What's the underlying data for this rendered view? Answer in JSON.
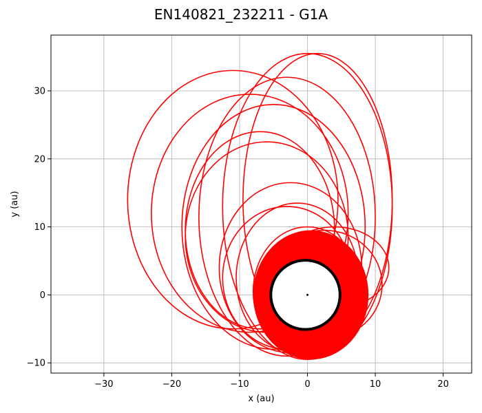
{
  "chart_data": {
    "type": "line",
    "title": "EN140821_232211 - G1A",
    "xlabel": "x (au)",
    "ylabel": "y (au)",
    "xlim": [
      -37.8,
      24.2
    ],
    "ylim": [
      -11.5,
      38.2
    ],
    "xticks": [
      -30,
      -20,
      -10,
      0,
      10,
      20
    ],
    "yticks": [
      -10,
      0,
      10,
      20,
      30
    ],
    "xtick_labels": [
      "−30",
      "−20",
      "−10",
      "0",
      "10",
      "20"
    ],
    "ytick_labels": [
      "−10",
      "0",
      "10",
      "20",
      "30"
    ],
    "grid": true,
    "series": [
      {
        "color": "#ff0000",
        "loops": [
          {
            "cx": -3.0,
            "cy": 2.5,
            "rx": 9.5,
            "ry": 10.5
          },
          {
            "cx": -2.5,
            "cy": 4.0,
            "rx": 10.5,
            "ry": 12.5
          },
          {
            "cx": 0.0,
            "cy": 0.5,
            "rx": 8.0,
            "ry": 9.5
          },
          {
            "cx": 1.0,
            "cy": 0.0,
            "rx": 7.5,
            "ry": 9.0
          },
          {
            "cx": -1.5,
            "cy": 2.5,
            "rx": 9.0,
            "ry": 11.0
          },
          {
            "cx": -6.0,
            "cy": 8.5,
            "rx": 12.0,
            "ry": 14.0
          },
          {
            "cx": -8.5,
            "cy": 12.0,
            "rx": 14.5,
            "ry": 17.5
          },
          {
            "cx": -11.0,
            "cy": 14.0,
            "rx": 15.5,
            "ry": 19.0
          },
          {
            "cx": -5.0,
            "cy": 10.0,
            "rx": 13.5,
            "ry": 18.0
          },
          {
            "cx": -3.0,
            "cy": 11.5,
            "rx": 13.0,
            "ry": 20.5
          },
          {
            "cx": 0.0,
            "cy": 13.0,
            "rx": 12.5,
            "ry": 22.5
          },
          {
            "cx": 1.5,
            "cy": 14.0,
            "rx": 11.0,
            "ry": 21.5
          },
          {
            "cx": -7.0,
            "cy": 9.5,
            "rx": 11.0,
            "ry": 14.5
          },
          {
            "cx": 2.5,
            "cy": 1.5,
            "rx": 8.5,
            "ry": 8.0
          },
          {
            "cx": 4.0,
            "cy": 4.0,
            "rx": 8.0,
            "ry": 6.0
          }
        ]
      },
      {
        "color": "#000000",
        "circle": {
          "cx": -0.3,
          "cy": 0.0,
          "r": 5.1
        }
      }
    ]
  }
}
